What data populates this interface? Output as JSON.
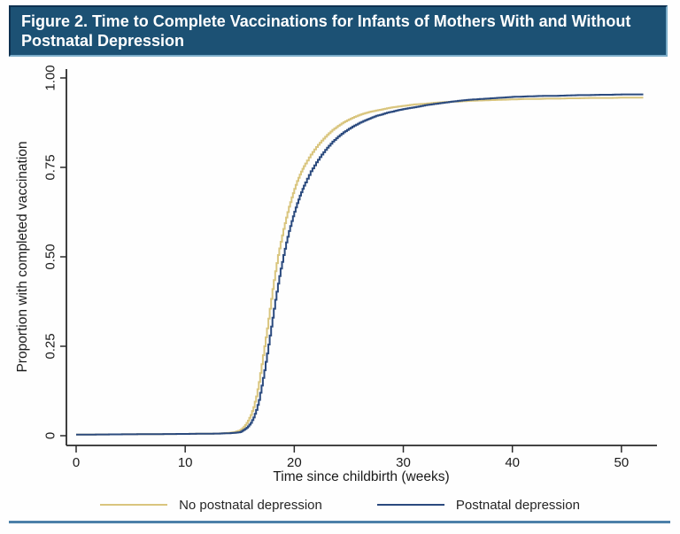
{
  "title_bar": {
    "text": "Figure 2. Time to Complete Vaccinations for Infants of Mothers With and Without Postnatal Depression"
  },
  "colors": {
    "title_bar_bg": "#1c5174",
    "title_bar_border_dark": "#0d3050",
    "title_bar_border_light": "#7cadc9",
    "bottom_rule": "#4c80a9",
    "axis": "#2a2a2a",
    "tick_text": "#1a1a1a",
    "no_depression_line": "#d9c57e",
    "depression_line": "#2b4a7e"
  },
  "legend": {
    "items": [
      {
        "label": "No postnatal depression",
        "color": "#d9c57e"
      },
      {
        "label": "Postnatal depression",
        "color": "#2b4a7e"
      }
    ]
  },
  "chart_data": {
    "type": "line",
    "subtype": "kaplan-meier-step",
    "title": "Figure 2. Time to Complete Vaccinations for Infants of Mothers With and Without Postnatal Depression",
    "xlabel": "Time since childbirth (weeks)",
    "ylabel": "Proportion with completed vaccination",
    "xlim": [
      0,
      53.5
    ],
    "ylim": [
      0,
      1.04
    ],
    "x_ticks": [
      0,
      10,
      20,
      30,
      40,
      50
    ],
    "y_ticks": [
      {
        "v": 0,
        "label": "0"
      },
      {
        "v": 0.25,
        "label": "0.25"
      },
      {
        "v": 0.5,
        "label": "0.50"
      },
      {
        "v": 0.75,
        "label": "0.75"
      },
      {
        "v": 1,
        "label": "1.00"
      }
    ],
    "grid": false,
    "legend_position": "bottom",
    "series": [
      {
        "name": "No postnatal depression",
        "color": "#d9c57e",
        "points": [
          [
            0,
            0.003
          ],
          [
            5,
            0.004
          ],
          [
            10,
            0.005
          ],
          [
            13,
            0.006
          ],
          [
            14,
            0.008
          ],
          [
            14.5,
            0.01
          ],
          [
            15,
            0.015
          ],
          [
            15.25,
            0.021
          ],
          [
            15.5,
            0.03
          ],
          [
            15.75,
            0.042
          ],
          [
            16,
            0.058
          ],
          [
            16.25,
            0.08
          ],
          [
            16.5,
            0.11
          ],
          [
            16.75,
            0.15
          ],
          [
            17,
            0.2
          ],
          [
            17.25,
            0.25
          ],
          [
            17.5,
            0.3
          ],
          [
            17.75,
            0.355
          ],
          [
            18,
            0.41
          ],
          [
            18.25,
            0.46
          ],
          [
            18.5,
            0.505
          ],
          [
            18.75,
            0.542
          ],
          [
            19,
            0.578
          ],
          [
            19.25,
            0.61
          ],
          [
            19.5,
            0.64
          ],
          [
            19.75,
            0.666
          ],
          [
            20,
            0.69
          ],
          [
            20.25,
            0.712
          ],
          [
            20.5,
            0.73
          ],
          [
            20.75,
            0.746
          ],
          [
            21,
            0.761
          ],
          [
            21.5,
            0.786
          ],
          [
            22,
            0.807
          ],
          [
            22.5,
            0.825
          ],
          [
            23,
            0.841
          ],
          [
            23.5,
            0.855
          ],
          [
            24,
            0.866
          ],
          [
            24.5,
            0.876
          ],
          [
            25,
            0.884
          ],
          [
            25.5,
            0.891
          ],
          [
            26,
            0.897
          ],
          [
            26.5,
            0.902
          ],
          [
            27,
            0.906
          ],
          [
            27.5,
            0.909
          ],
          [
            28,
            0.912
          ],
          [
            28.5,
            0.915
          ],
          [
            29,
            0.918
          ],
          [
            29.5,
            0.92
          ],
          [
            30,
            0.922
          ],
          [
            31,
            0.926
          ],
          [
            32,
            0.928
          ],
          [
            33,
            0.931
          ],
          [
            34,
            0.933
          ],
          [
            35,
            0.934
          ],
          [
            36,
            0.936
          ],
          [
            37,
            0.937
          ],
          [
            38,
            0.938
          ],
          [
            39,
            0.939
          ],
          [
            40,
            0.94
          ],
          [
            41,
            0.941
          ],
          [
            42,
            0.941
          ],
          [
            43,
            0.942
          ],
          [
            44,
            0.942
          ],
          [
            45,
            0.943
          ],
          [
            46,
            0.943
          ],
          [
            47,
            0.944
          ],
          [
            48,
            0.944
          ],
          [
            49,
            0.944
          ],
          [
            50,
            0.945
          ],
          [
            51,
            0.945
          ],
          [
            52,
            0.945
          ]
        ]
      },
      {
        "name": "Postnatal depression",
        "color": "#2b4a7e",
        "points": [
          [
            0,
            0.003
          ],
          [
            5,
            0.004
          ],
          [
            10,
            0.005
          ],
          [
            13,
            0.006
          ],
          [
            14,
            0.007
          ],
          [
            14.5,
            0.008
          ],
          [
            15,
            0.01
          ],
          [
            15.25,
            0.014
          ],
          [
            15.5,
            0.019
          ],
          [
            15.75,
            0.026
          ],
          [
            16,
            0.036
          ],
          [
            16.25,
            0.051
          ],
          [
            16.5,
            0.072
          ],
          [
            16.75,
            0.1
          ],
          [
            17,
            0.14
          ],
          [
            17.25,
            0.183
          ],
          [
            17.5,
            0.23
          ],
          [
            17.75,
            0.28
          ],
          [
            18,
            0.33
          ],
          [
            18.25,
            0.38
          ],
          [
            18.5,
            0.425
          ],
          [
            18.75,
            0.467
          ],
          [
            19,
            0.505
          ],
          [
            19.25,
            0.54
          ],
          [
            19.5,
            0.572
          ],
          [
            19.75,
            0.6
          ],
          [
            20,
            0.626
          ],
          [
            20.25,
            0.65
          ],
          [
            20.5,
            0.671
          ],
          [
            20.75,
            0.69
          ],
          [
            21,
            0.708
          ],
          [
            21.5,
            0.739
          ],
          [
            22,
            0.764
          ],
          [
            22.5,
            0.786
          ],
          [
            23,
            0.805
          ],
          [
            23.5,
            0.822
          ],
          [
            24,
            0.836
          ],
          [
            24.5,
            0.848
          ],
          [
            25,
            0.858
          ],
          [
            25.5,
            0.867
          ],
          [
            26,
            0.875
          ],
          [
            26.5,
            0.882
          ],
          [
            27,
            0.888
          ],
          [
            27.5,
            0.894
          ],
          [
            28,
            0.898
          ],
          [
            28.5,
            0.903
          ],
          [
            29,
            0.906
          ],
          [
            29.5,
            0.91
          ],
          [
            30,
            0.913
          ],
          [
            31,
            0.918
          ],
          [
            32,
            0.924
          ],
          [
            33,
            0.928
          ],
          [
            34,
            0.932
          ],
          [
            35,
            0.936
          ],
          [
            36,
            0.939
          ],
          [
            37,
            0.941
          ],
          [
            38,
            0.943
          ],
          [
            39,
            0.945
          ],
          [
            40,
            0.947
          ],
          [
            41,
            0.948
          ],
          [
            42,
            0.949
          ],
          [
            43,
            0.95
          ],
          [
            44,
            0.95
          ],
          [
            45,
            0.951
          ],
          [
            46,
            0.952
          ],
          [
            47,
            0.952
          ],
          [
            48,
            0.953
          ],
          [
            49,
            0.953
          ],
          [
            50,
            0.954
          ],
          [
            51,
            0.954
          ],
          [
            52,
            0.954
          ]
        ]
      }
    ]
  }
}
